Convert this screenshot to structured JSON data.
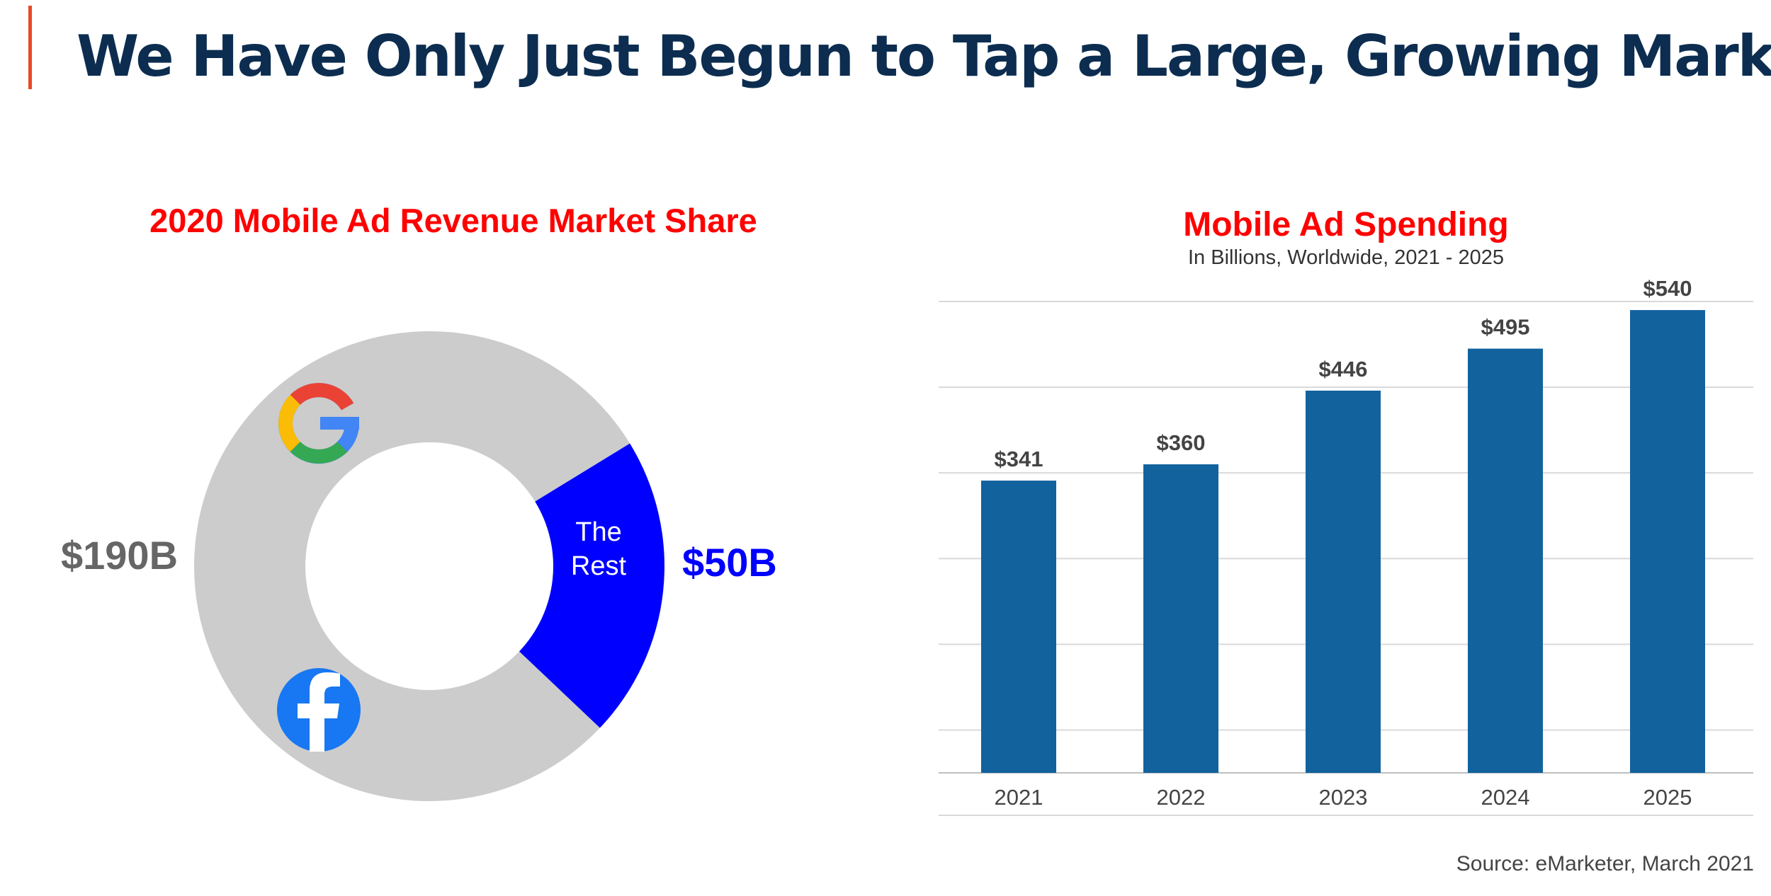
{
  "slide": {
    "title": "We Have Only Just Begun to Tap a Large, Growing Market",
    "accent_color": "#e84a27",
    "title_color": "#0c2d50",
    "source": "Source: eMarketer, March 2021"
  },
  "donut": {
    "title": "2020 Mobile Ad Revenue Market Share",
    "big_label": "$190B",
    "rest_value_label": "$50B",
    "rest_slice_label": "The Rest",
    "rest_slice_label_line1": "The",
    "rest_slice_label_line2": "Rest",
    "icons": [
      "google-logo-icon",
      "facebook-logo-icon"
    ]
  },
  "bars": {
    "title": "Mobile Ad Spending",
    "subtitle": "In Billions, Worldwide, 2021 - 2025"
  },
  "chart_data": [
    {
      "type": "pie",
      "variant": "donut",
      "title": "2020 Mobile Ad Revenue Market Share",
      "slices": [
        {
          "name": "Google + Facebook",
          "value": 190,
          "label": "$190B",
          "color": "#cccccc"
        },
        {
          "name": "The Rest",
          "value": 50,
          "label": "$50B",
          "color": "#0000ff"
        }
      ],
      "units": "USD billions"
    },
    {
      "type": "bar",
      "title": "Mobile Ad Spending",
      "subtitle": "In Billions, Worldwide, 2021 - 2025",
      "categories": [
        "2021",
        "2022",
        "2023",
        "2024",
        "2025"
      ],
      "values": [
        341,
        360,
        446,
        495,
        540
      ],
      "value_labels": [
        "$341",
        "$360",
        "$446",
        "$495",
        "$540"
      ],
      "bar_color": "#12629e",
      "grid_color": "#d9d9d9",
      "ylim": [
        0,
        550
      ],
      "gridlines_at": [
        50,
        150,
        250,
        350,
        450,
        550
      ],
      "grid": true,
      "xlabel": "",
      "ylabel": ""
    }
  ]
}
